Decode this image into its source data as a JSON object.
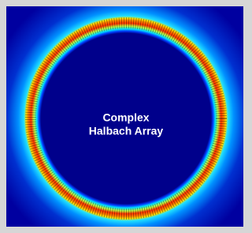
{
  "label": {
    "lines": [
      "Complex",
      "Halbach Array"
    ]
  }
}
